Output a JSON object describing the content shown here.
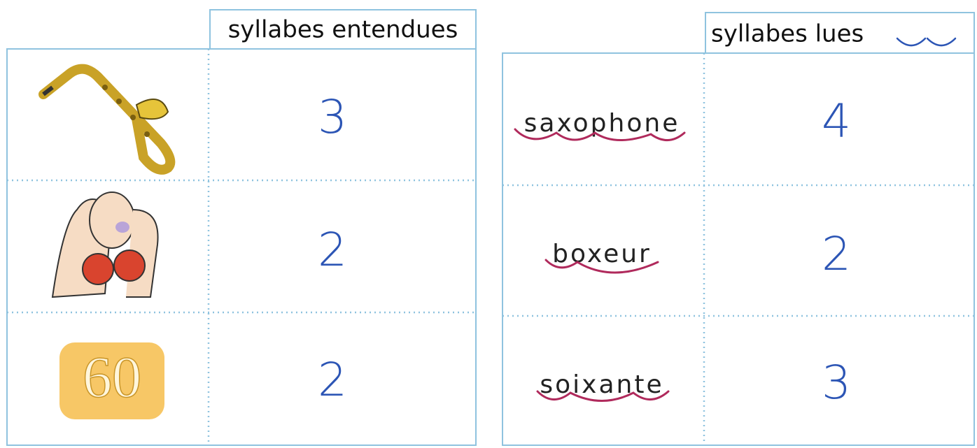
{
  "left_table": {
    "header": "syllabes entendues",
    "picture_label": "60",
    "counts": [
      3,
      2,
      2
    ]
  },
  "right_table": {
    "header": "syllabes lues",
    "words": [
      "saxophone",
      "boxeur",
      "soixante"
    ],
    "counts": [
      4,
      2,
      3
    ]
  }
}
